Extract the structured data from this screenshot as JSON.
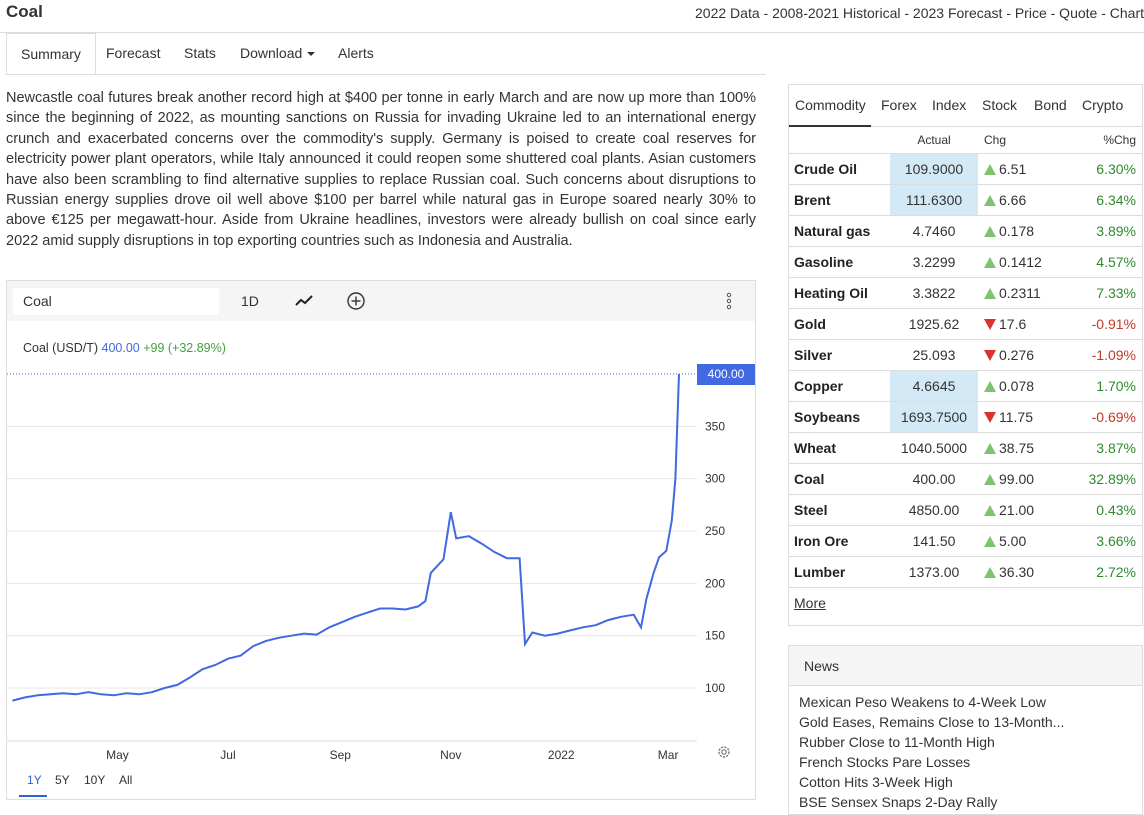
{
  "header": {
    "title": "Coal",
    "description": "2022 Data - 2008-2021 Historical - 2023 Forecast - Price - Quote - Chart"
  },
  "tabs": [
    {
      "label": "Summary",
      "active": true
    },
    {
      "label": "Forecast"
    },
    {
      "label": "Stats"
    },
    {
      "label": "Download"
    },
    {
      "label": "Alerts"
    }
  ],
  "summary_text": "Newcastle coal futures break another record high at $400 per tonne in early March and are now up more than 100% since the beginning of 2022, as mounting sanctions on Russia for invading Ukraine led to an international energy crunch and exacerbated concerns over the commodity's supply. Germany is poised to create coal reserves for electricity power plant operators, while Italy announced it could reopen some shuttered coal plants. Asian customers have also been scrambling to find alternative supplies to replace Russian coal. Such concerns about disruptions to Russian energy supplies drove oil well above $100 per barrel while natural gas in Europe soared nearly 30% to above €125 per megawatt-hour. Aside from Ukraine headlines, investors were already bullish on coal since early 2022 amid supply disruptions in top exporting countries such as Indonesia and Australia.",
  "chart_toolbar": {
    "symbol_value": "Coal",
    "interval_label": "1D",
    "icons": [
      "line-chart-icon",
      "add-indicator-icon",
      "more-options-icon",
      "settings-gear-icon"
    ]
  },
  "chart_legend": {
    "label": "Coal (USD/T)",
    "value": "400.00",
    "change": "+99 (+32.89%)"
  },
  "chart_ranges": [
    "1Y",
    "5Y",
    "10Y",
    "All"
  ],
  "chart_ranges_active": "1Y",
  "colors": {
    "line": "#4169e1",
    "up": "#2f8a2f",
    "down": "#c0392b",
    "highlight": "#d4e9f6",
    "link_blue": "#2b65d9"
  },
  "chart_data": {
    "type": "line",
    "title": "",
    "series": [
      {
        "name": "Coal (USD/T)",
        "points": [
          [
            "2021-03-04",
            88
          ],
          [
            "2021-03-11",
            91
          ],
          [
            "2021-03-18",
            93
          ],
          [
            "2021-03-25",
            94
          ],
          [
            "2021-04-01",
            95
          ],
          [
            "2021-04-08",
            94
          ],
          [
            "2021-04-15",
            96
          ],
          [
            "2021-04-22",
            94
          ],
          [
            "2021-04-29",
            93
          ],
          [
            "2021-05-06",
            95
          ],
          [
            "2021-05-13",
            94
          ],
          [
            "2021-05-20",
            96
          ],
          [
            "2021-05-27",
            100
          ],
          [
            "2021-06-03",
            103
          ],
          [
            "2021-06-10",
            110
          ],
          [
            "2021-06-17",
            118
          ],
          [
            "2021-06-24",
            122
          ],
          [
            "2021-07-01",
            128
          ],
          [
            "2021-07-08",
            131
          ],
          [
            "2021-07-15",
            140
          ],
          [
            "2021-07-22",
            145
          ],
          [
            "2021-07-29",
            148
          ],
          [
            "2021-08-05",
            150
          ],
          [
            "2021-08-12",
            152
          ],
          [
            "2021-08-19",
            151
          ],
          [
            "2021-08-26",
            158
          ],
          [
            "2021-09-02",
            163
          ],
          [
            "2021-09-09",
            168
          ],
          [
            "2021-09-16",
            172
          ],
          [
            "2021-09-23",
            176
          ],
          [
            "2021-09-30",
            176
          ],
          [
            "2021-10-07",
            175
          ],
          [
            "2021-10-14",
            178
          ],
          [
            "2021-10-18",
            183
          ],
          [
            "2021-10-21",
            210
          ],
          [
            "2021-10-28",
            223
          ],
          [
            "2021-11-01",
            268
          ],
          [
            "2021-11-04",
            243
          ],
          [
            "2021-11-11",
            245
          ],
          [
            "2021-11-18",
            238
          ],
          [
            "2021-11-25",
            230
          ],
          [
            "2021-12-02",
            224
          ],
          [
            "2021-12-09",
            224
          ],
          [
            "2021-12-12",
            142
          ],
          [
            "2021-12-16",
            153
          ],
          [
            "2021-12-23",
            150
          ],
          [
            "2021-12-30",
            152
          ],
          [
            "2022-01-06",
            155
          ],
          [
            "2022-01-13",
            158
          ],
          [
            "2022-01-20",
            160
          ],
          [
            "2022-01-27",
            165
          ],
          [
            "2022-02-03",
            168
          ],
          [
            "2022-02-10",
            170
          ],
          [
            "2022-02-14",
            158
          ],
          [
            "2022-02-17",
            185
          ],
          [
            "2022-02-21",
            210
          ],
          [
            "2022-02-24",
            225
          ],
          [
            "2022-02-28",
            231
          ],
          [
            "2022-03-03",
            260
          ],
          [
            "2022-03-05",
            300
          ],
          [
            "2022-03-07",
            400
          ]
        ]
      }
    ],
    "x_ticks": [
      "May",
      "Jul",
      "Sep",
      "Nov",
      "2022",
      "Mar"
    ],
    "y_ticks": [
      100,
      150,
      200,
      250,
      300,
      350
    ],
    "ylim": [
      60,
      420
    ],
    "last_value_label": "400.00",
    "grid": true
  },
  "market_tabs": [
    {
      "label": "Commodity",
      "active": true
    },
    {
      "label": "Forex"
    },
    {
      "label": "Index"
    },
    {
      "label": "Stock"
    },
    {
      "label": "Bond"
    },
    {
      "label": "Crypto"
    }
  ],
  "table_headers": {
    "actual": "Actual",
    "chg": "Chg",
    "pct": "%Chg"
  },
  "quotes": [
    {
      "name": "Crude Oil",
      "actual": "109.9000",
      "chg": "6.51",
      "pct": "6.30%",
      "dir": "up",
      "hl": true
    },
    {
      "name": "Brent",
      "actual": "111.6300",
      "chg": "6.66",
      "pct": "6.34%",
      "dir": "up",
      "hl": true
    },
    {
      "name": "Natural gas",
      "actual": "4.7460",
      "chg": "0.178",
      "pct": "3.89%",
      "dir": "up",
      "hl": false
    },
    {
      "name": "Gasoline",
      "actual": "3.2299",
      "chg": "0.1412",
      "pct": "4.57%",
      "dir": "up",
      "hl": false
    },
    {
      "name": "Heating Oil",
      "actual": "3.3822",
      "chg": "0.2311",
      "pct": "7.33%",
      "dir": "up",
      "hl": false
    },
    {
      "name": "Gold",
      "actual": "1925.62",
      "chg": "17.6",
      "pct": "-0.91%",
      "dir": "down",
      "hl": false
    },
    {
      "name": "Silver",
      "actual": "25.093",
      "chg": "0.276",
      "pct": "-1.09%",
      "dir": "down",
      "hl": false
    },
    {
      "name": "Copper",
      "actual": "4.6645",
      "chg": "0.078",
      "pct": "1.70%",
      "dir": "up",
      "hl": true
    },
    {
      "name": "Soybeans",
      "actual": "1693.7500",
      "chg": "11.75",
      "pct": "-0.69%",
      "dir": "down",
      "hl": true
    },
    {
      "name": "Wheat",
      "actual": "1040.5000",
      "chg": "38.75",
      "pct": "3.87%",
      "dir": "up",
      "hl": false
    },
    {
      "name": "Coal",
      "actual": "400.00",
      "chg": "99.00",
      "pct": "32.89%",
      "dir": "up",
      "hl": false
    },
    {
      "name": "Steel",
      "actual": "4850.00",
      "chg": "21.00",
      "pct": "0.43%",
      "dir": "up",
      "hl": false
    },
    {
      "name": "Iron Ore",
      "actual": "141.50",
      "chg": "5.00",
      "pct": "3.66%",
      "dir": "up",
      "hl": false
    },
    {
      "name": "Lumber",
      "actual": "1373.00",
      "chg": "36.30",
      "pct": "2.72%",
      "dir": "up",
      "hl": false
    }
  ],
  "more_label": "More",
  "news": {
    "title": "News",
    "items": [
      "Mexican Peso Weakens to 4-Week Low",
      "Gold Eases, Remains Close to 13-Month...",
      "Rubber Close to 11-Month High",
      "French Stocks Pare Losses",
      "Cotton Hits 3-Week High",
      "BSE Sensex Snaps 2-Day Rally"
    ]
  }
}
